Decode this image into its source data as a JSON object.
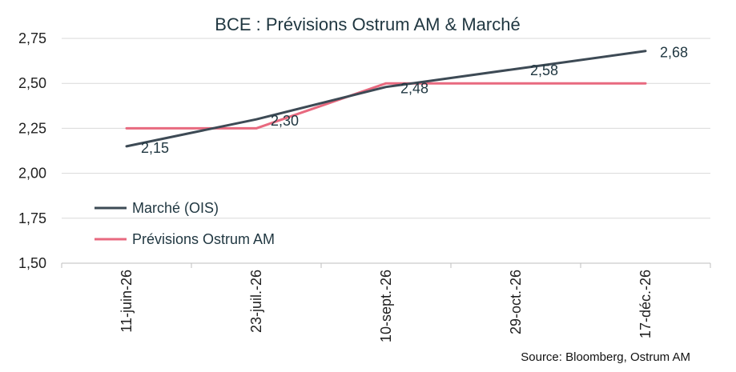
{
  "chart_data": {
    "type": "line",
    "title": "BCE : Prévisions Ostrum AM & Marché",
    "categories": [
      "11-juin-26",
      "23-juil.-26",
      "10-sept.-26",
      "29-oct.-26",
      "17-déc.-26"
    ],
    "ylim": [
      1.5,
      2.75
    ],
    "yticks": [
      "1,50",
      "1,75",
      "2,00",
      "2,25",
      "2,50",
      "2,75"
    ],
    "grid": true,
    "legend_position": "left-middle",
    "series": [
      {
        "name": "Marché (OIS)",
        "color": "#3d4a55",
        "values": [
          2.15,
          2.3,
          2.48,
          2.58,
          2.68
        ],
        "data_labels": [
          "2,15",
          "2,30",
          "2,48",
          "2,58",
          "2,68"
        ]
      },
      {
        "name": "Prévisions Ostrum AM",
        "color": "#e8697f",
        "values": [
          2.25,
          2.25,
          2.5,
          2.5,
          2.5
        ]
      }
    ],
    "source": "Source: Bloomberg, Ostrum AM"
  }
}
